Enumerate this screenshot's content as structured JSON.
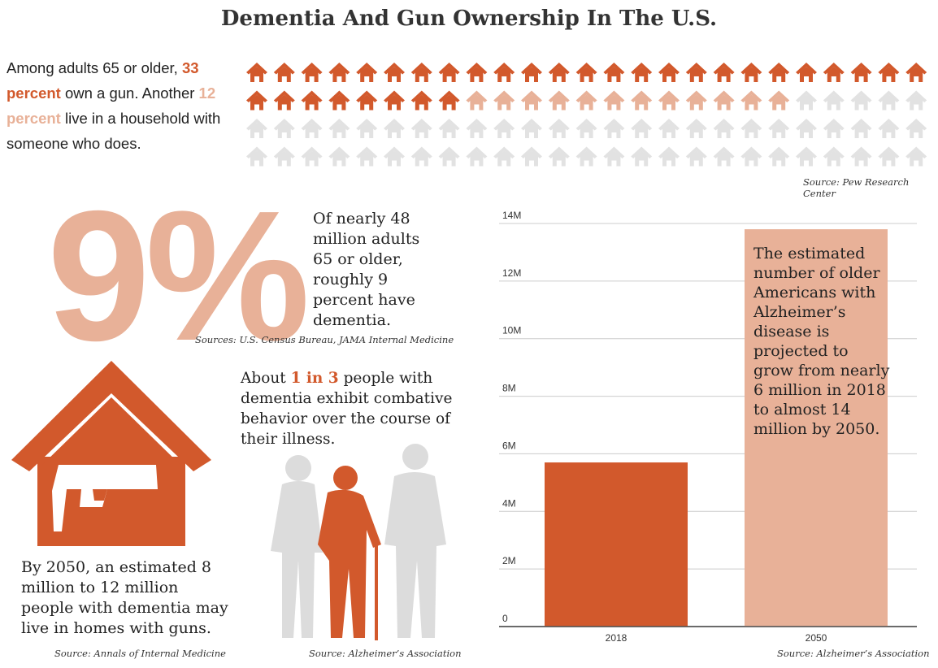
{
  "title": "Dementia And Gun Ownership In The U.S.",
  "intro": {
    "part1": "Among adults 65 or older, ",
    "highlight1": "33 percent",
    "part2": " own a gun. Another ",
    "highlight2": "12 percent",
    "part3": " live in a household with someone who does."
  },
  "pictogram": {
    "total": 100,
    "own_gun": 33,
    "household_with_gun": 12,
    "columns": 25,
    "colors": {
      "own": "#d2592c",
      "household": "#e8b198",
      "none": "#e2e2e2"
    }
  },
  "source_pew": "Source: Pew Research Center",
  "big_stat": "9%",
  "dementia_text": "Of nearly 48 million adults 65 or older, roughly 9 percent have dementia.",
  "source_census": "Sources: U.S. Census Bureau, JAMA Internal Medicine",
  "combative": {
    "part1": "About ",
    "highlight": "1 in 3",
    "part2": " people with dementia exhibit combative behavior over the course of their illness."
  },
  "homes_text": "By 2050, an estimated 8 million to 12 million people with dementia may live in homes with guns.",
  "source_annals": "Source: Annals of Internal Medicine",
  "source_alz1": "Source: Alzheimer’s Association",
  "chart_data": {
    "type": "bar",
    "categories": [
      "2018",
      "2050"
    ],
    "values": [
      5.7,
      13.8
    ],
    "colors": [
      "#d2592c",
      "#e8b198"
    ],
    "ylim": [
      0,
      14
    ],
    "yticks": [
      "0",
      "2M",
      "4M",
      "6M",
      "8M",
      "10M",
      "12M",
      "14M"
    ],
    "annotation": "The estimated number of older Americans with Alzheimer’s disease is projected to grow from nearly 6 million in 2018 to almost 14 million by 2050.",
    "source": "Source: Alzheimer’s Association"
  },
  "colors": {
    "accent": "#d2592c",
    "accent_light": "#e8b198",
    "gray": "#e2e2e2"
  }
}
